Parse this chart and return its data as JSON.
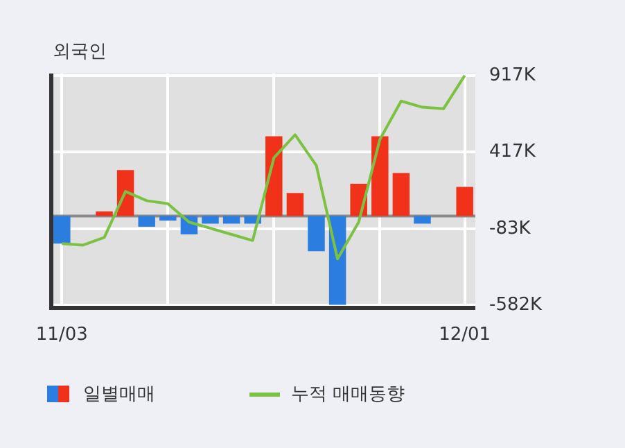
{
  "chart_data": {
    "type": "bar",
    "title": "외국인",
    "categories": [
      "11/03",
      null,
      null,
      null,
      null,
      null,
      null,
      null,
      null,
      null,
      null,
      null,
      null,
      null,
      null,
      null,
      null,
      null,
      null,
      "12/01"
    ],
    "series": [
      {
        "name": "일별매매",
        "colors": [
          "#2b7de0",
          "#2b7de0",
          "#f0321a",
          "#f0321a",
          "#2b7de0",
          "#2b7de0",
          "#2b7de0",
          "#2b7de0",
          "#2b7de0",
          "#2b7de0",
          "#f0321a",
          "#f0321a",
          "#2b7de0",
          "#2b7de0",
          "#f0321a",
          "#f0321a",
          "#f0321a",
          "#2b7de0",
          "#2b7de0",
          "#f0321a"
        ],
        "values": [
          -180,
          0,
          30,
          300,
          -70,
          -30,
          -120,
          -50,
          -50,
          -50,
          520,
          150,
          -230,
          -580,
          210,
          520,
          280,
          -50,
          0,
          190
        ]
      },
      {
        "name": "누적 매매동향",
        "type": "line",
        "color": "#7cc242",
        "values": [
          -180,
          -190,
          -140,
          160,
          100,
          80,
          -40,
          -80,
          -120,
          -160,
          380,
          530,
          330,
          -280,
          -40,
          500,
          750,
          710,
          700,
          917
        ]
      }
    ],
    "ylim": [
      -600,
      930
    ],
    "yticks": [
      {
        "value": 917,
        "label": "917K"
      },
      {
        "value": 417,
        "label": "417K"
      },
      {
        "value": -83,
        "label": "-83K"
      },
      {
        "value": -582,
        "label": "-582K"
      }
    ],
    "ref_lines": [
      {
        "axis": "y",
        "value": 0,
        "color": "#8a8a8a"
      }
    ],
    "grid": true,
    "legend": "bottom",
    "marker": "none",
    "line_style": "solid"
  }
}
